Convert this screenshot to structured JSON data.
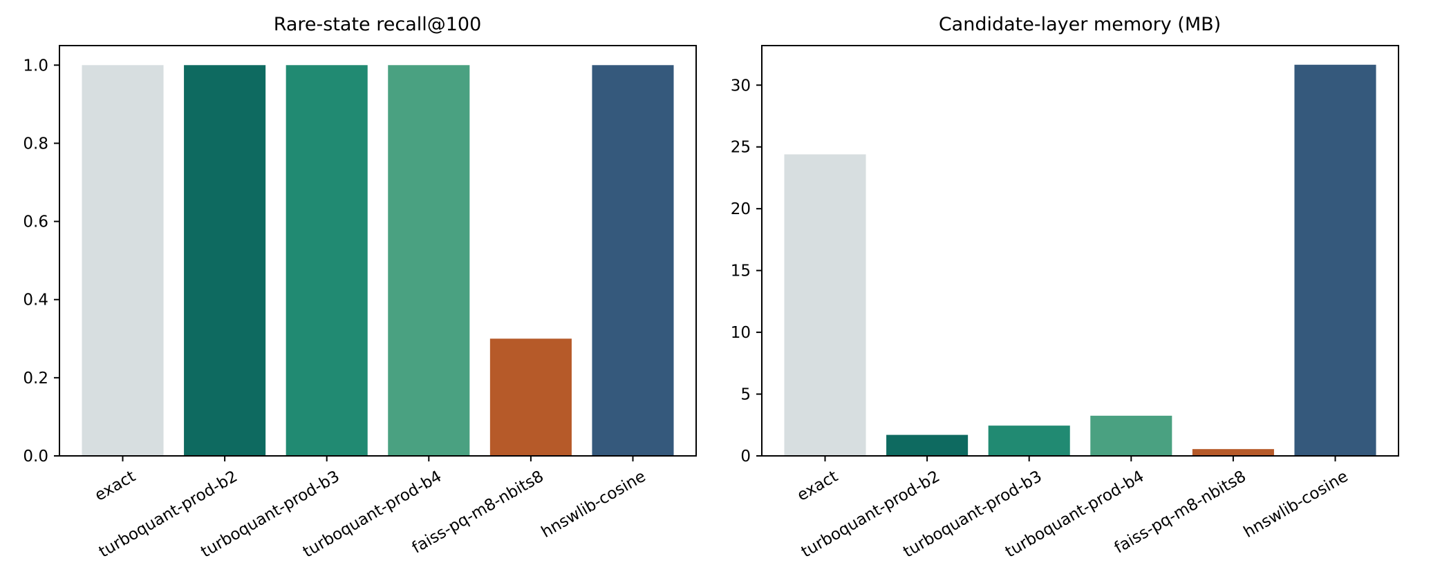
{
  "figure_colors": {
    "background": "#ffffff",
    "spine": "#000000",
    "text": "#000000"
  },
  "chart_data": [
    {
      "type": "bar",
      "title": "Rare-state recall@100",
      "categories": [
        "exact",
        "turboquant-prod-b2",
        "turboquant-prod-b3",
        "turboquant-prod-b4",
        "faiss-pq-m8-nbits8",
        "hnswlib-cosine"
      ],
      "values": [
        1.0,
        1.0,
        1.0,
        1.0,
        0.3,
        1.0
      ],
      "bar_colors": [
        "#d7dee0",
        "#0e6a60",
        "#218a72",
        "#4aa181",
        "#b65a29",
        "#35597c"
      ],
      "xlabel": "",
      "ylabel": "",
      "ylim": [
        0,
        1.05
      ],
      "yticks": [
        0.0,
        0.2,
        0.4,
        0.6,
        0.8,
        1.0
      ],
      "ytick_labels": [
        "0.0",
        "0.2",
        "0.4",
        "0.6",
        "0.8",
        "1.0"
      ],
      "xtick_rotation_deg": 30,
      "grid": false,
      "legend": "none"
    },
    {
      "type": "bar",
      "title": "Candidate-layer memory (MB)",
      "categories": [
        "exact",
        "turboquant-prod-b2",
        "turboquant-prod-b3",
        "turboquant-prod-b4",
        "faiss-pq-m8-nbits8",
        "hnswlib-cosine"
      ],
      "values": [
        24.4,
        1.7,
        2.45,
        3.25,
        0.55,
        31.65
      ],
      "bar_colors": [
        "#d7dee0",
        "#0e6a60",
        "#218a72",
        "#4aa181",
        "#b65a29",
        "#35597c"
      ],
      "xlabel": "",
      "ylabel": "",
      "ylim": [
        0,
        33.2
      ],
      "yticks": [
        0,
        5,
        10,
        15,
        20,
        25,
        30
      ],
      "ytick_labels": [
        "0",
        "5",
        "10",
        "15",
        "20",
        "25",
        "30"
      ],
      "xtick_rotation_deg": 30,
      "grid": false,
      "legend": "none"
    }
  ]
}
